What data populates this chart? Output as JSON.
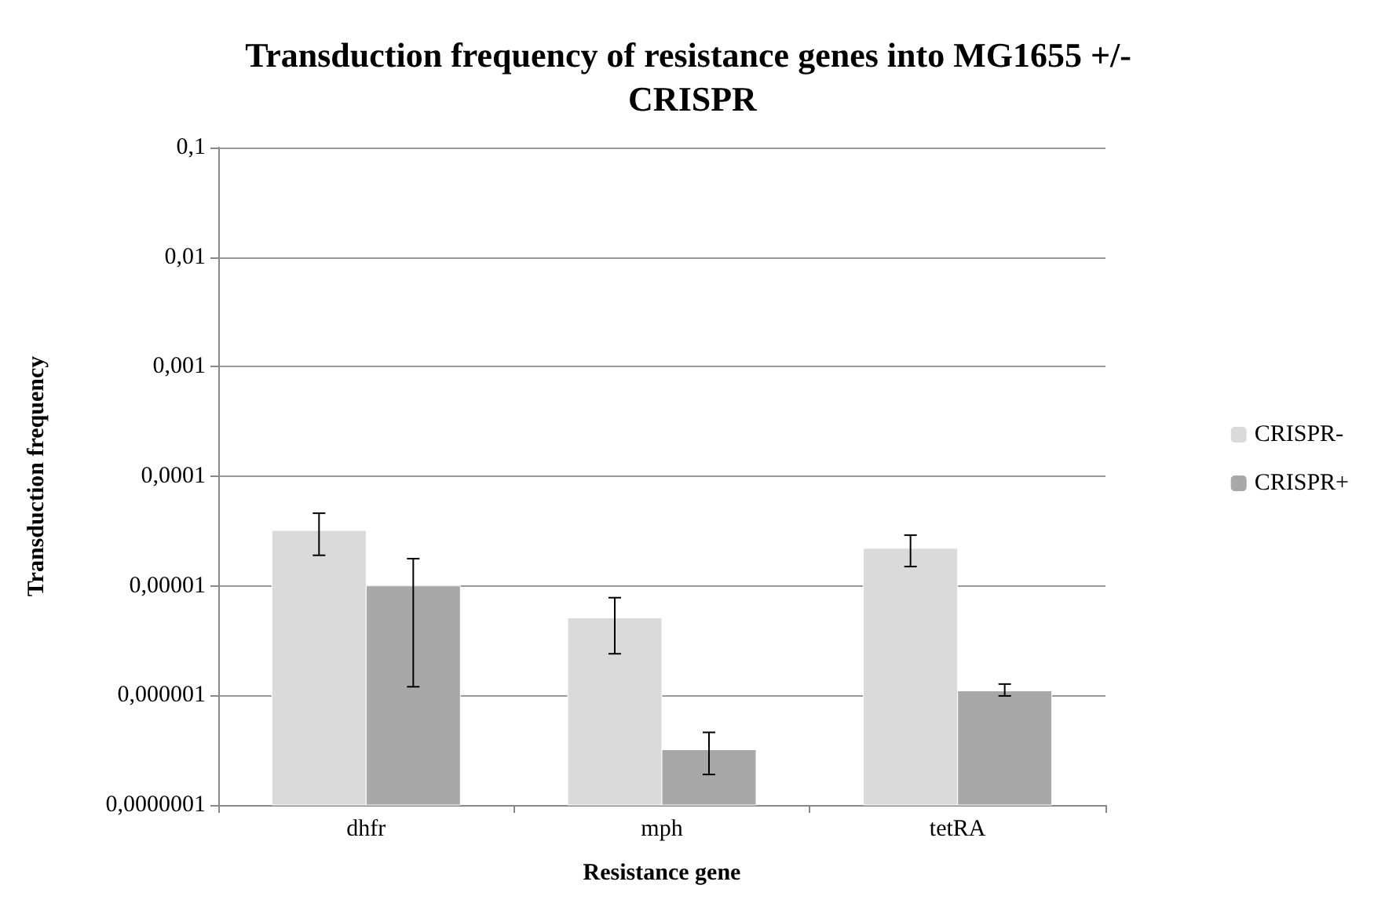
{
  "chart_data": {
    "type": "bar",
    "title": "Transduction frequency of resistance genes into MG1655 +/- CRISPR",
    "xlabel": "Resistance gene",
    "ylabel": "Transduction frequency",
    "categories": [
      "dhfr",
      "mph",
      "tetRA"
    ],
    "series": [
      {
        "name": "CRISPR-",
        "color": "#dadada",
        "values": [
          3.2e-05,
          5.1e-06,
          2.2e-05
        ],
        "errors": [
          [
            1.9e-05,
            4.6e-05
          ],
          [
            2.4e-06,
            7.8e-06
          ],
          [
            1.5e-05,
            2.9e-05
          ]
        ]
      },
      {
        "name": "CRISPR+",
        "color": "#a8a8a8",
        "values": [
          1e-05,
          3.2e-07,
          1.1e-06
        ],
        "errors": [
          [
            1.2e-06,
            1.77e-05
          ],
          [
            1.9e-07,
            4.6e-07
          ],
          [
            9.9e-07,
            1.27e-06
          ]
        ]
      }
    ],
    "log": "y",
    "ylim": [
      1e-07,
      0.1
    ],
    "yticks": [
      {
        "value": 1e-07,
        "label": "0,0000001"
      },
      {
        "value": 1e-06,
        "label": "0,000001"
      },
      {
        "value": 1e-05,
        "label": "0,00001"
      },
      {
        "value": 0.0001,
        "label": "0,0001"
      },
      {
        "value": 0.001,
        "label": "0,001"
      },
      {
        "value": 0.01,
        "label": "0,01"
      },
      {
        "value": 0.1,
        "label": "0,1"
      }
    ],
    "grid": "y",
    "legend": "right"
  }
}
